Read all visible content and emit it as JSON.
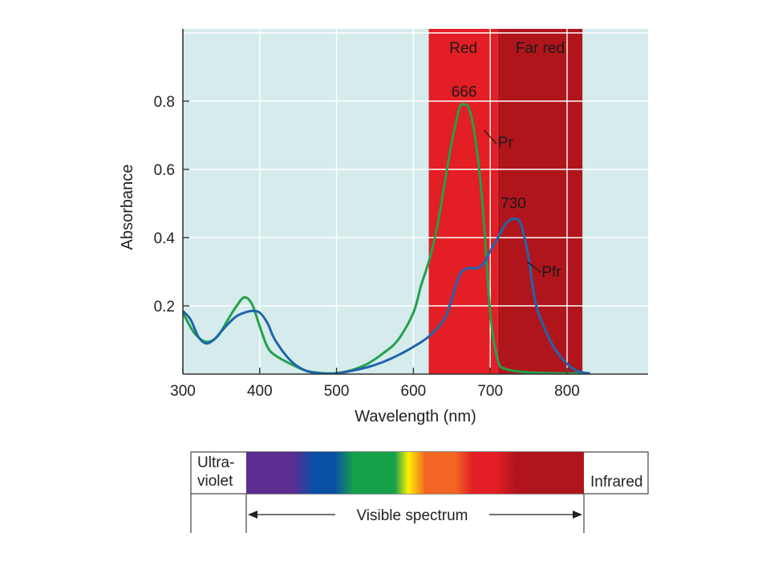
{
  "chart_data": {
    "type": "line",
    "xlabel": "Wavelength (nm)",
    "ylabel": "Absorbance",
    "xlim": [
      300,
      900
    ],
    "ylim": [
      0,
      1.0
    ],
    "x_ticks": [
      300,
      400,
      500,
      600,
      700,
      800
    ],
    "y_ticks": [
      0.2,
      0.4,
      0.6,
      0.8
    ],
    "grid": true,
    "background_color": "#d6ecec",
    "bands": [
      {
        "label": "Red",
        "from": 620,
        "to": 710,
        "color": "#e31e24"
      },
      {
        "label": "Far red",
        "from": 710,
        "to": 820,
        "color": "#b0151c"
      }
    ],
    "series": [
      {
        "name": "Pr",
        "color": "#22a14b",
        "x": [
          300,
          315,
          330,
          345,
          360,
          370,
          380,
          390,
          400,
          410,
          420,
          440,
          460,
          480,
          500,
          520,
          540,
          560,
          580,
          600,
          610,
          620,
          630,
          640,
          650,
          660,
          666,
          672,
          680,
          690,
          700,
          710,
          720,
          740,
          760,
          800,
          830
        ],
        "y": [
          0.18,
          0.12,
          0.095,
          0.11,
          0.165,
          0.2,
          0.225,
          0.205,
          0.14,
          0.08,
          0.055,
          0.03,
          0.01,
          0.003,
          0.003,
          0.012,
          0.03,
          0.06,
          0.1,
          0.18,
          0.26,
          0.33,
          0.42,
          0.55,
          0.68,
          0.78,
          0.79,
          0.78,
          0.7,
          0.5,
          0.18,
          0.04,
          0.015,
          0.007,
          0.004,
          0.002,
          0.002
        ]
      },
      {
        "name": "Pfr",
        "color": "#1f64ad",
        "x": [
          300,
          310,
          320,
          330,
          340,
          350,
          360,
          370,
          380,
          390,
          400,
          410,
          420,
          440,
          460,
          480,
          500,
          520,
          540,
          560,
          580,
          600,
          620,
          640,
          650,
          660,
          670,
          680,
          690,
          700,
          710,
          720,
          730,
          740,
          750,
          760,
          780,
          800,
          815,
          830
        ],
        "y": [
          0.185,
          0.16,
          0.11,
          0.09,
          0.1,
          0.125,
          0.15,
          0.17,
          0.18,
          0.185,
          0.18,
          0.15,
          0.1,
          0.04,
          0.01,
          0.002,
          0.002,
          0.01,
          0.02,
          0.035,
          0.055,
          0.08,
          0.11,
          0.16,
          0.22,
          0.29,
          0.31,
          0.31,
          0.32,
          0.36,
          0.4,
          0.44,
          0.455,
          0.44,
          0.34,
          0.2,
          0.09,
          0.03,
          0.008,
          0.002
        ]
      }
    ],
    "annotations": [
      {
        "text": "666",
        "x": 666,
        "y": 0.79
      },
      {
        "text": "730",
        "x": 730,
        "y": 0.455
      },
      {
        "text": "Pr",
        "series": "Pr"
      },
      {
        "text": "Pfr",
        "series": "Pfr"
      }
    ]
  },
  "spectrum_bar": {
    "left_label_line1": "Ultra-",
    "left_label_line2": "violet",
    "right_label": "Infrared",
    "caption": "Visible spectrum",
    "colors": [
      "#5b2d91",
      "#0a4fa6",
      "#17a04a",
      "#fff200",
      "#f26522",
      "#e31e24",
      "#b0151c"
    ]
  }
}
